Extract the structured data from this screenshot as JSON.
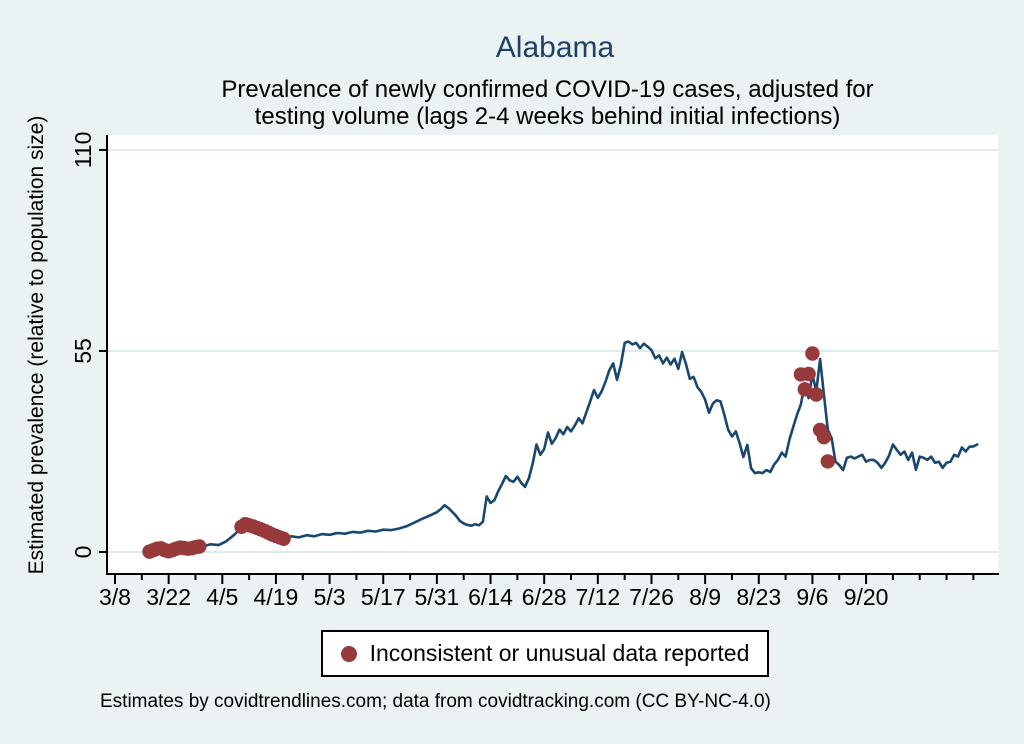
{
  "page_background": "#eaf2f3",
  "chart_data": {
    "type": "line",
    "title": "Alabama",
    "subtitle": "Prevalence of newly confirmed COVID-19 cases, adjusted for testing volume (lags 2-4 weeks behind initial infections)",
    "subtitle_lines": [
      "Prevalence of newly confirmed COVID-19 cases, adjusted for",
      "testing volume (lags 2-4 weeks behind initial infections)"
    ],
    "ylabel": "Estimated prevalence (relative to population size)",
    "xlabel": "",
    "note": "Estimates by covidtrendlines.com; data from covidtracking.com (CC BY-NC-4.0)",
    "legend_label": "Inconsistent or unusual data reported",
    "ylim": [
      -6,
      115
    ],
    "y_ticks": [
      0,
      55,
      110
    ],
    "x_tick_labels": [
      "3/8",
      "3/22",
      "4/5",
      "4/19",
      "5/3",
      "5/17",
      "5/31",
      "6/14",
      "6/28",
      "7/12",
      "7/26",
      "8/9",
      "8/23",
      "9/6",
      "9/20"
    ],
    "x_minor_tick_days": [
      7,
      21,
      35,
      49,
      63,
      77,
      91,
      105,
      119,
      133,
      147,
      161,
      175,
      189,
      203,
      210,
      217,
      224
    ],
    "grid": true,
    "legend_position": "bottom",
    "plot_background": "#ffffff",
    "grid_color": "#dfe9ee",
    "axis_color": "#000000",
    "line_color": "#1a476f",
    "marker_color": "#98393c",
    "title_color": "#1e4164",
    "series": [
      {
        "name": "Estimated prevalence",
        "type": "line",
        "color": "#1a476f",
        "points": [
          [
            "3/17",
            0.2
          ],
          [
            "3/19",
            0.7
          ],
          [
            "3/21",
            0.4
          ],
          [
            "3/23",
            0.8
          ],
          [
            "3/25",
            1.1
          ],
          [
            "3/27",
            0.9
          ],
          [
            "3/29",
            1.2
          ],
          [
            "3/31",
            1.6
          ],
          [
            "4/2",
            2.1
          ],
          [
            "4/4",
            1.9
          ],
          [
            "4/6",
            2.9
          ],
          [
            "4/8",
            4.6
          ],
          [
            "4/10",
            6.7
          ],
          [
            "4/11",
            7.6
          ],
          [
            "4/13",
            7.0
          ],
          [
            "4/15",
            6.3
          ],
          [
            "4/17",
            5.4
          ],
          [
            "4/19",
            4.5
          ],
          [
            "4/21",
            3.9
          ],
          [
            "4/23",
            4.3
          ],
          [
            "4/25",
            4.0
          ],
          [
            "4/27",
            4.6
          ],
          [
            "4/29",
            4.3
          ],
          [
            "5/1",
            4.9
          ],
          [
            "5/3",
            4.7
          ],
          [
            "5/5",
            5.2
          ],
          [
            "5/7",
            5.0
          ],
          [
            "5/9",
            5.5
          ],
          [
            "5/11",
            5.3
          ],
          [
            "5/13",
            5.8
          ],
          [
            "5/15",
            5.6
          ],
          [
            "5/17",
            6.1
          ],
          [
            "5/19",
            6.0
          ],
          [
            "5/21",
            6.4
          ],
          [
            "5/23",
            7.0
          ],
          [
            "5/25",
            8.0
          ],
          [
            "5/27",
            9.0
          ],
          [
            "5/29",
            9.9
          ],
          [
            "5/31",
            10.9
          ],
          [
            "6/1",
            11.7
          ],
          [
            "6/2",
            12.8
          ],
          [
            "6/3",
            12.0
          ],
          [
            "6/4",
            11.0
          ],
          [
            "6/5",
            9.9
          ],
          [
            "6/6",
            8.5
          ],
          [
            "6/7",
            7.8
          ],
          [
            "6/8",
            7.4
          ],
          [
            "6/9",
            7.2
          ],
          [
            "6/10",
            7.6
          ],
          [
            "6/11",
            7.3
          ],
          [
            "6/12",
            8.3
          ],
          [
            "6/13",
            15.2
          ],
          [
            "6/14",
            13.4
          ],
          [
            "6/15",
            14.2
          ],
          [
            "6/16",
            16.6
          ],
          [
            "6/17",
            18.6
          ],
          [
            "6/18",
            20.8
          ],
          [
            "6/19",
            19.6
          ],
          [
            "6/20",
            19.2
          ],
          [
            "6/21",
            20.6
          ],
          [
            "6/22",
            18.9
          ],
          [
            "6/23",
            17.8
          ],
          [
            "6/24",
            20.2
          ],
          [
            "6/25",
            24.2
          ],
          [
            "6/26",
            29.4
          ],
          [
            "6/27",
            26.6
          ],
          [
            "6/28",
            28.2
          ],
          [
            "6/29",
            32.7
          ],
          [
            "6/30",
            29.6
          ],
          [
            "7/1",
            31.2
          ],
          [
            "7/2",
            33.5
          ],
          [
            "7/3",
            32.2
          ],
          [
            "7/4",
            34.2
          ],
          [
            "7/5",
            33.0
          ],
          [
            "7/6",
            34.6
          ],
          [
            "7/7",
            36.6
          ],
          [
            "7/8",
            35.2
          ],
          [
            "7/9",
            38.2
          ],
          [
            "7/10",
            41.2
          ],
          [
            "7/11",
            44.3
          ],
          [
            "7/12",
            42.2
          ],
          [
            "7/13",
            44.0
          ],
          [
            "7/14",
            46.6
          ],
          [
            "7/15",
            49.7
          ],
          [
            "7/16",
            51.6
          ],
          [
            "7/17",
            47.1
          ],
          [
            "7/18",
            51.1
          ],
          [
            "7/19",
            57.2
          ],
          [
            "7/20",
            57.6
          ],
          [
            "7/21",
            56.8
          ],
          [
            "7/22",
            57.2
          ],
          [
            "7/23",
            55.8
          ],
          [
            "7/24",
            57.0
          ],
          [
            "7/25",
            56.2
          ],
          [
            "7/26",
            55.2
          ],
          [
            "7/27",
            53.0
          ],
          [
            "7/28",
            53.8
          ],
          [
            "7/29",
            51.6
          ],
          [
            "7/30",
            53.2
          ],
          [
            "7/31",
            51.3
          ],
          [
            "8/1",
            52.9
          ],
          [
            "8/2",
            50.1
          ],
          [
            "8/3",
            54.7
          ],
          [
            "8/4",
            51.4
          ],
          [
            "8/5",
            47.4
          ],
          [
            "8/6",
            47.9
          ],
          [
            "8/7",
            45.1
          ],
          [
            "8/8",
            43.8
          ],
          [
            "8/9",
            41.7
          ],
          [
            "8/10",
            38.1
          ],
          [
            "8/11",
            40.6
          ],
          [
            "8/12",
            41.5
          ],
          [
            "8/13",
            41.2
          ],
          [
            "8/14",
            37.6
          ],
          [
            "8/15",
            33.5
          ],
          [
            "8/16",
            31.6
          ],
          [
            "8/17",
            33.0
          ],
          [
            "8/18",
            29.8
          ],
          [
            "8/19",
            26.0
          ],
          [
            "8/20",
            29.3
          ],
          [
            "8/21",
            22.9
          ],
          [
            "8/22",
            21.6
          ],
          [
            "8/23",
            21.8
          ],
          [
            "8/24",
            21.6
          ],
          [
            "8/25",
            22.4
          ],
          [
            "8/26",
            21.9
          ],
          [
            "8/27",
            23.9
          ],
          [
            "8/28",
            25.2
          ],
          [
            "8/29",
            27.2
          ],
          [
            "8/30",
            26.1
          ],
          [
            "8/31",
            30.7
          ],
          [
            "9/1",
            34.3
          ],
          [
            "9/2",
            37.6
          ],
          [
            "9/3",
            40.4
          ],
          [
            "9/4",
            46.2
          ],
          [
            "9/5",
            42.1
          ],
          [
            "9/6",
            48.6
          ],
          [
            "9/7",
            44.0
          ],
          [
            "9/8",
            52.8
          ],
          [
            "9/9",
            43.1
          ],
          [
            "9/10",
            33.4
          ],
          [
            "9/11",
            31.2
          ],
          [
            "9/12",
            24.8
          ],
          [
            "9/13",
            23.8
          ],
          [
            "9/14",
            22.4
          ],
          [
            "9/15",
            25.8
          ],
          [
            "9/16",
            26.1
          ],
          [
            "9/17",
            25.6
          ],
          [
            "9/18",
            26.1
          ],
          [
            "9/19",
            26.6
          ],
          [
            "9/20",
            24.7
          ],
          [
            "9/21",
            25.2
          ],
          [
            "9/22",
            25.2
          ],
          [
            "9/23",
            24.4
          ],
          [
            "9/24",
            23.0
          ],
          [
            "9/25",
            24.4
          ],
          [
            "9/26",
            26.4
          ],
          [
            "9/27",
            29.4
          ],
          [
            "9/28",
            28.0
          ],
          [
            "9/29",
            26.6
          ],
          [
            "9/30",
            27.5
          ],
          [
            "10/1",
            25.2
          ],
          [
            "10/2",
            27.2
          ],
          [
            "10/3",
            22.5
          ],
          [
            "10/4",
            26.1
          ],
          [
            "10/5",
            25.8
          ],
          [
            "10/6",
            25.2
          ],
          [
            "10/7",
            26.1
          ],
          [
            "10/8",
            24.4
          ],
          [
            "10/9",
            24.7
          ],
          [
            "10/10",
            23.0
          ],
          [
            "10/11",
            24.4
          ],
          [
            "10/12",
            24.7
          ],
          [
            "10/13",
            26.6
          ],
          [
            "10/14",
            26.1
          ],
          [
            "10/15",
            28.6
          ],
          [
            "10/16",
            27.5
          ],
          [
            "10/17",
            28.8
          ],
          [
            "10/18",
            28.9
          ],
          [
            "10/19",
            29.4
          ]
        ]
      },
      {
        "name": "Inconsistent or unusual data reported",
        "type": "scatter",
        "color": "#98393c",
        "points": [
          [
            "3/17",
            0.1
          ],
          [
            "3/18",
            0.5
          ],
          [
            "3/19",
            0.9
          ],
          [
            "3/20",
            1.0
          ],
          [
            "3/21",
            0.5
          ],
          [
            "3/22",
            0.2
          ],
          [
            "3/23",
            0.5
          ],
          [
            "3/24",
            0.9
          ],
          [
            "3/25",
            1.2
          ],
          [
            "3/26",
            1.1
          ],
          [
            "3/27",
            0.9
          ],
          [
            "3/28",
            1.0
          ],
          [
            "3/29",
            1.3
          ],
          [
            "3/30",
            1.5
          ],
          [
            "4/10",
            6.9
          ],
          [
            "4/11",
            7.6
          ],
          [
            "4/12",
            7.3
          ],
          [
            "4/13",
            7.0
          ],
          [
            "4/14",
            6.6
          ],
          [
            "4/15",
            6.2
          ],
          [
            "4/16",
            5.8
          ],
          [
            "4/17",
            5.3
          ],
          [
            "4/18",
            4.8
          ],
          [
            "4/19",
            4.4
          ],
          [
            "4/20",
            4.0
          ],
          [
            "4/21",
            3.6
          ],
          [
            "9/3",
            48.6
          ],
          [
            "9/4",
            44.5
          ],
          [
            "9/5",
            48.7
          ],
          [
            "9/6",
            54.3
          ],
          [
            "9/7",
            43.1
          ],
          [
            "9/8",
            33.4
          ],
          [
            "9/9",
            31.4
          ],
          [
            "9/10",
            24.8
          ]
        ]
      }
    ]
  }
}
